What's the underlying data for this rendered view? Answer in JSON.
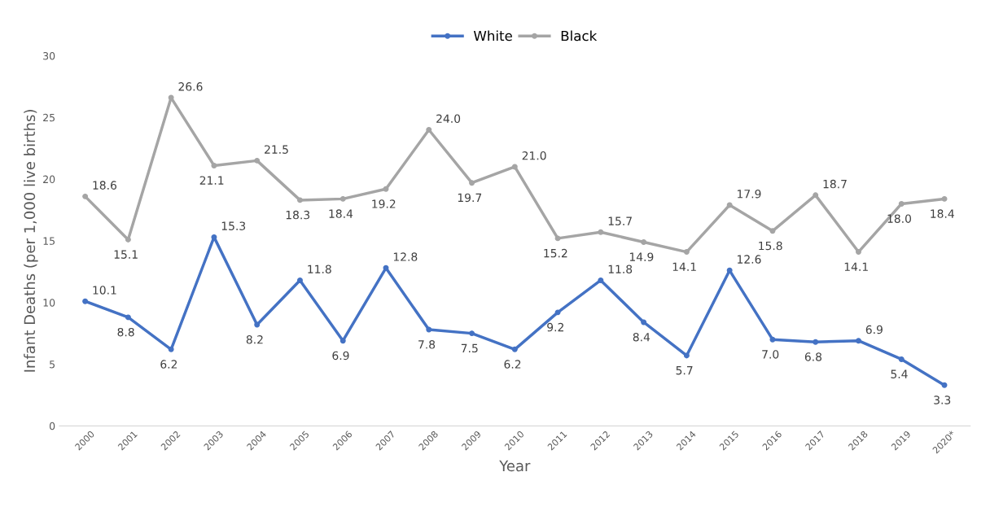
{
  "chart_data": {
    "type": "line",
    "xlabel": "Year",
    "ylabel": "Infant Deaths (per 1,000 live births)",
    "categories": [
      "2000",
      "2001",
      "2002",
      "2003",
      "2004",
      "2005",
      "2006",
      "2007",
      "2008",
      "2009",
      "2010",
      "2011",
      "2012",
      "2013",
      "2014",
      "2015",
      "2016",
      "2017",
      "2018",
      "2019",
      "2020*"
    ],
    "series": [
      {
        "name": "White",
        "color": "#4472c4",
        "values": [
          10.1,
          8.8,
          6.2,
          15.3,
          8.2,
          11.8,
          6.9,
          12.8,
          7.8,
          7.5,
          6.2,
          9.2,
          11.8,
          8.4,
          5.7,
          12.6,
          7.0,
          6.8,
          6.9,
          5.4,
          3.3
        ],
        "value_labels": [
          "10.1",
          "8.8",
          "6.2",
          "15.3",
          "8.2",
          "11.8",
          "6.9",
          "12.8",
          "7.8",
          "7.5",
          "6.2",
          "9.2",
          "11.8",
          "8.4",
          "5.7",
          "12.6",
          "7.0",
          "6.8",
          "6.9",
          "5.4",
          "3.3"
        ]
      },
      {
        "name": "Black",
        "color": "#a5a5a5",
        "values": [
          18.6,
          15.1,
          26.6,
          21.1,
          21.5,
          18.3,
          18.4,
          19.2,
          24.0,
          19.7,
          21.0,
          15.2,
          15.7,
          14.9,
          14.1,
          17.9,
          15.8,
          18.7,
          14.1,
          18.0,
          18.4
        ],
        "value_labels": [
          "18.6",
          "15.1",
          "26.6",
          "21.1",
          "21.5",
          "18.3",
          "18.4",
          "19.2",
          "24.0",
          "19.7",
          "21.0",
          "15.2",
          "15.7",
          "14.9",
          "14.1",
          "17.9",
          "15.8",
          "18.7",
          "14.1",
          "18.0",
          "18.4"
        ]
      }
    ],
    "ylim": [
      0,
      30
    ],
    "yticks": [
      0,
      5,
      10,
      15,
      20,
      25,
      30
    ],
    "grid": false,
    "legend": "top",
    "marker": "circle",
    "line_style": "solid"
  }
}
